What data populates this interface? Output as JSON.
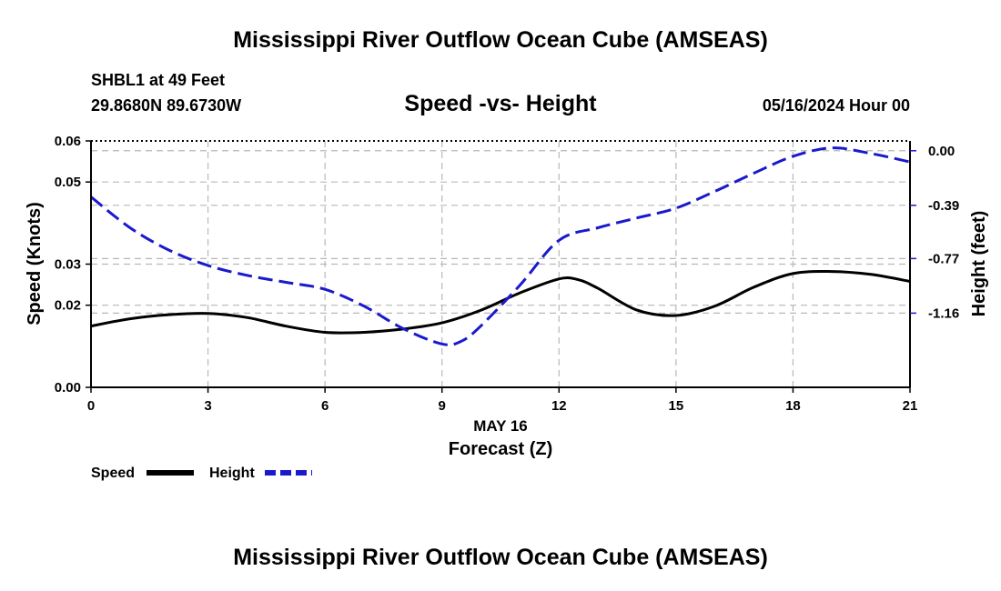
{
  "header": {
    "title": "Mississippi River Outflow Ocean Cube (AMSEAS)",
    "station": "SHBL1 at 49 Feet",
    "coordinates": "29.8680N  89.6730W",
    "subtitle": "Speed -vs- Height",
    "datetime": "05/16/2024 Hour 00"
  },
  "footer": {
    "title": "Mississippi River Outflow Ocean Cube (AMSEAS)"
  },
  "legend": {
    "speed_label": "Speed",
    "height_label": "Height"
  },
  "colors": {
    "speed": "#000000",
    "height": "#1a1acc",
    "grid": "#b8b8b8"
  },
  "chart_data": {
    "type": "line",
    "title": "Speed -vs- Height",
    "xlabel": "Forecast (Z)",
    "xlabel_date": "MAY 16",
    "ylabel": "Speed (Knots)",
    "ylabel_right": "Height (feet)",
    "xlim": [
      0,
      21
    ],
    "ylim": [
      0.0,
      0.06
    ],
    "ylim_right": [
      -1.69,
      0.07
    ],
    "x_ticks": [
      0,
      3,
      6,
      9,
      12,
      15,
      18,
      21
    ],
    "x_tick_labels": [
      "0",
      "3",
      "6",
      "9",
      "12",
      "15",
      "18",
      "21"
    ],
    "y_ticks": [
      0.0,
      0.02,
      0.03,
      0.05,
      0.06
    ],
    "y_tick_labels": [
      "0.00",
      "0.02",
      "0.03",
      "0.05",
      "0.06"
    ],
    "y_ticks_right": [
      0.0,
      -0.39,
      -0.77,
      -1.16
    ],
    "y_tick_labels_right": [
      "0.00",
      "-0.39",
      "-0.77",
      "-1.16"
    ],
    "grid": true,
    "series": [
      {
        "name": "Speed",
        "axis": "left",
        "style": "solid",
        "x": [
          0,
          1,
          2,
          3,
          4,
          5,
          6,
          7,
          8,
          9,
          10,
          11,
          12,
          12.5,
          13,
          14,
          15,
          16,
          17,
          18,
          19,
          20,
          21
        ],
        "values": [
          0.0149,
          0.0167,
          0.0177,
          0.018,
          0.017,
          0.0149,
          0.0134,
          0.0134,
          0.0142,
          0.0157,
          0.0188,
          0.023,
          0.0264,
          0.0262,
          0.0241,
          0.0188,
          0.0175,
          0.0198,
          0.0244,
          0.0277,
          0.0282,
          0.0275,
          0.0258
        ]
      },
      {
        "name": "Height",
        "axis": "right",
        "style": "dashed",
        "x": [
          0,
          1,
          2,
          3,
          4,
          5,
          6,
          7,
          8,
          9,
          9.5,
          10,
          11,
          12,
          13,
          14,
          15,
          16,
          17,
          18,
          19,
          20,
          21
        ],
        "values": [
          -0.33,
          -0.55,
          -0.71,
          -0.82,
          -0.89,
          -0.94,
          -0.99,
          -1.11,
          -1.27,
          -1.38,
          -1.36,
          -1.25,
          -0.96,
          -0.64,
          -0.55,
          -0.48,
          -0.41,
          -0.29,
          -0.16,
          -0.04,
          0.02,
          -0.02,
          -0.08
        ]
      }
    ]
  }
}
